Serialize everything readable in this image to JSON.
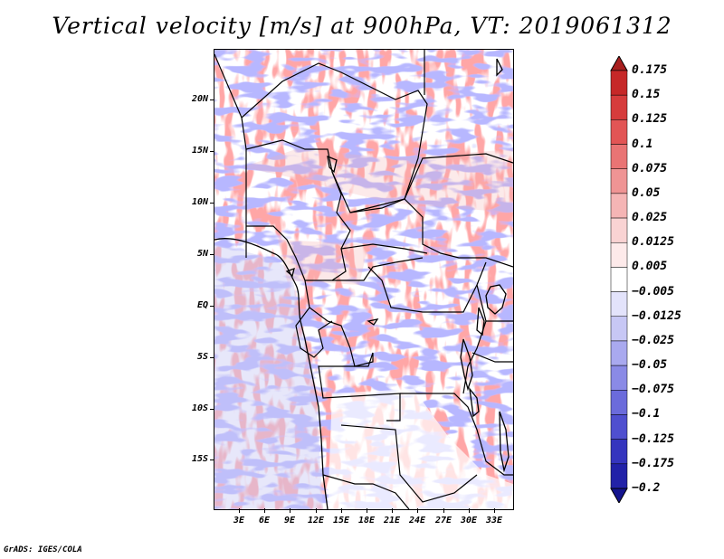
{
  "title": "Vertical velocity [m/s] at 900hPa, VT: 2019061312",
  "credit": "GrADS: IGES/COLA",
  "map": {
    "lat_labels": [
      "20N",
      "15N",
      "10N",
      "5N",
      "EQ",
      "5S",
      "10S",
      "15S"
    ],
    "lon_labels": [
      "3E",
      "6E",
      "9E",
      "12E",
      "15E",
      "18E",
      "21E",
      "24E",
      "27E",
      "30E",
      "33E"
    ]
  },
  "colorbar": {
    "levels": [
      "0.175",
      "0.15",
      "0.125",
      "0.1",
      "0.075",
      "0.05",
      "0.025",
      "0.0125",
      "0.005",
      "−0.005",
      "−0.0125",
      "−0.025",
      "−0.05",
      "−0.075",
      "−0.1",
      "−0.125",
      "−0.175",
      "−0.2"
    ],
    "colors": [
      "#a81f1f",
      "#c62828",
      "#d63c3c",
      "#e25555",
      "#e97474",
      "#ef9494",
      "#f5b5b5",
      "#f9d3d3",
      "#fdeaea",
      "#ffffff",
      "#e3e3fb",
      "#c7c7f5",
      "#a9a9ef",
      "#8a8ae6",
      "#6b6bdb",
      "#4f4fcf",
      "#3535be",
      "#2222a8",
      "#14148e"
    ]
  }
}
